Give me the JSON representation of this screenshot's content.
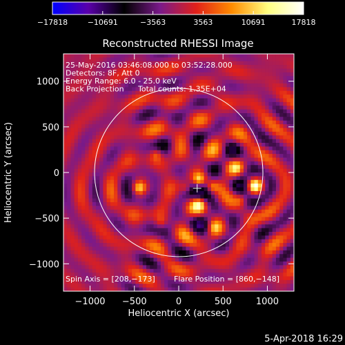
{
  "chart_data": {
    "type": "heatmap",
    "title": "Reconstructed RHESSI Image",
    "xlabel": "Heliocentric X (arcsec)",
    "ylabel": "Heliocentric Y (arcsec)",
    "xlim": [
      -1300,
      1300
    ],
    "ylim": [
      -1300,
      1300
    ],
    "xticks": [
      -1000,
      -500,
      0,
      500,
      1000
    ],
    "xtick_labels": [
      "−1000",
      "−500",
      "0",
      "500",
      "1000"
    ],
    "yticks": [
      -1000,
      -500,
      0,
      500,
      1000
    ],
    "ytick_labels": [
      "−1000",
      "−500",
      "0",
      "500",
      "1000"
    ],
    "colorbar": {
      "range": [
        -17818,
        17818
      ],
      "tick_values": [
        -17818,
        -10691,
        -3563,
        3563,
        10691,
        17818
      ],
      "tick_labels": [
        "−17818",
        "−10691",
        "−3563",
        "3563",
        "10691",
        "17818"
      ],
      "colors": [
        "#0000ff",
        "#5a00aa",
        "#000000",
        "#7a1a8a",
        "#e0201a",
        "#ff8c00",
        "#ffff80",
        "#ffffff"
      ]
    },
    "annotations": [
      "25-May-2016 03:46:08.000 to 03:52:28.000",
      "Detectors: 8F, Att 0",
      "Energy Range: 6.0 - 25.0 keV",
      "Back Projection",
      "Total counts: 1.35E+04"
    ],
    "spin_axis_label": "Spin Axis = [208,−173]",
    "flare_position_label": "Flare Position = [860,−148]",
    "spin_axis": [
      208,
      -173
    ],
    "flare_position": [
      860,
      -148
    ],
    "solar_limb_radius": 950,
    "peaks": [
      {
        "x": 860,
        "y": -148,
        "v": 17818
      },
      {
        "x": 230,
        "y": -80,
        "v": 14000
      },
      {
        "x": 230,
        "y": -350,
        "v": 13500
      },
      {
        "x": -450,
        "y": -170,
        "v": 13000
      },
      {
        "x": 380,
        "y": -160,
        "v": 11000
      },
      {
        "x": -250,
        "y": 200,
        "v": 9000
      },
      {
        "x": 80,
        "y": -170,
        "v": 9000
      },
      {
        "x": 650,
        "y": 50,
        "v": 8000
      },
      {
        "x": 700,
        "y": -300,
        "v": 8000
      },
      {
        "x": 400,
        "y": -600,
        "v": 7000
      },
      {
        "x": -200,
        "y": -550,
        "v": 7000
      }
    ],
    "footer_date": "5-Apr-2018 16:29"
  }
}
